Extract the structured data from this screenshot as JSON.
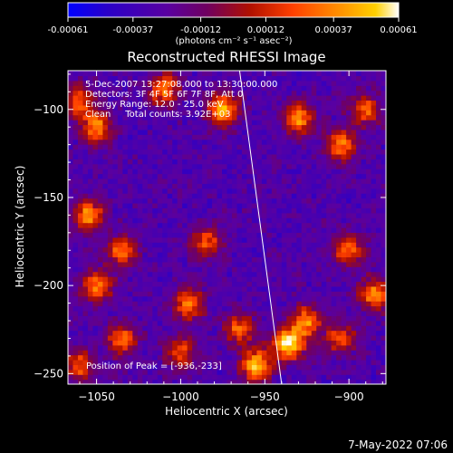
{
  "chart_data": {
    "type": "heatmap",
    "title": "Reconstructed RHESSI Image",
    "xlabel": "Heliocentric X (arcsec)",
    "ylabel": "Heliocentric Y (arcsec)",
    "xlim": [
      -1067,
      -878
    ],
    "ylim": [
      -256,
      -78
    ],
    "x_ticks": [
      -1050,
      -1000,
      -950,
      -900
    ],
    "y_ticks": [
      -100,
      -150,
      -200,
      -250
    ],
    "x_tick_labels": [
      "−1050",
      "−1000",
      "−950",
      "−900"
    ],
    "y_tick_labels": [
      "−100",
      "−150",
      "−200",
      "−250"
    ],
    "colorbar": {
      "min": -0.00061,
      "max": 0.00061,
      "tick_labels": [
        "-0.00061",
        "-0.00037",
        "-0.00012",
        "0.00012",
        "0.00037",
        "0.00061"
      ],
      "tick_values": [
        -0.00061,
        -0.00037,
        -0.00012,
        0.00012,
        0.00037,
        0.00061
      ],
      "unit_text": "(photons cm⁻² s⁻¹ asec⁻²)",
      "colormap": [
        "#0000ff",
        "#2a00c8",
        "#5a00a0",
        "#8a1a4a",
        "#c02000",
        "#ff5000",
        "#ff9000",
        "#ffd000",
        "#ffffff"
      ]
    },
    "annotations": [
      "5-Dec-2007 13:27:08.000 to 13:30:00.000",
      "Detectors: 3F 4F 5F 6F 7F 8F, Att 0",
      "Energy Range: 12.0 - 25.0 keV",
      "Clean     Total counts: 3.92E+03"
    ],
    "peak_label": "Position of Peak = [-936,-233]",
    "peak": [
      -936,
      -233
    ],
    "limb_line": [
      [
        -965,
        -78
      ],
      [
        -940,
        -256
      ]
    ],
    "hot_regions": [
      {
        "x": -1010,
        "y": -88,
        "w": 0.7
      },
      {
        "x": -975,
        "y": -100,
        "w": 0.85
      },
      {
        "x": -930,
        "y": -105,
        "w": 0.75
      },
      {
        "x": -905,
        "y": -120,
        "w": 0.7
      },
      {
        "x": -890,
        "y": -100,
        "w": 0.6
      },
      {
        "x": -1050,
        "y": -110,
        "w": 0.7
      },
      {
        "x": -1060,
        "y": -95,
        "w": 0.6
      },
      {
        "x": -1055,
        "y": -160,
        "w": 0.75
      },
      {
        "x": -1035,
        "y": -180,
        "w": 0.65
      },
      {
        "x": -1050,
        "y": -200,
        "w": 0.7
      },
      {
        "x": -1035,
        "y": -230,
        "w": 0.65
      },
      {
        "x": -1060,
        "y": -245,
        "w": 0.6
      },
      {
        "x": -985,
        "y": -175,
        "w": 0.55
      },
      {
        "x": -995,
        "y": -210,
        "w": 0.65
      },
      {
        "x": -900,
        "y": -180,
        "w": 0.65
      },
      {
        "x": -885,
        "y": -205,
        "w": 0.75
      },
      {
        "x": -905,
        "y": -230,
        "w": 0.55
      },
      {
        "x": -965,
        "y": -225,
        "w": 0.6
      },
      {
        "x": -936,
        "y": -233,
        "w": 1.0
      },
      {
        "x": -955,
        "y": -245,
        "w": 0.85
      },
      {
        "x": -925,
        "y": -220,
        "w": 0.7
      },
      {
        "x": -1000,
        "y": -238,
        "w": 0.55
      }
    ]
  },
  "footer": {
    "timestamp": "7-May-2022 07:06"
  }
}
